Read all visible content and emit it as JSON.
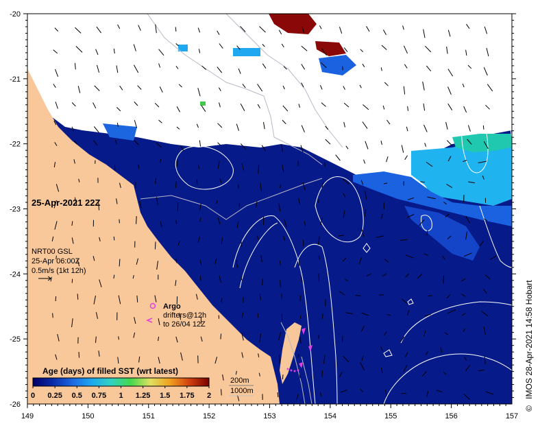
{
  "map": {
    "date_label": "25-Apr-2021 22Z",
    "current_info": {
      "line1": "NRT00 GSL",
      "line2": "25-Apr 06:00Z",
      "line3": "0.5m/s (1kt 12h)"
    },
    "argo": {
      "title": "Argo",
      "line1": "drifters@12h",
      "line2": "to 26/04 12Z"
    },
    "bathymetry": {
      "line1": "200m",
      "line2": "1000m"
    },
    "credit": "IMOS 28-Apr-2021 14:58 Hobart",
    "credit_symbol": "©",
    "lon_ticks": [
      "149",
      "150",
      "151",
      "152",
      "153",
      "154",
      "155",
      "156",
      "157"
    ],
    "lat_ticks": [
      "-20",
      "-21",
      "-22",
      "-23",
      "-24",
      "-25",
      "-26"
    ],
    "colorbar": {
      "title": "Age (days) of filled SST (wrt latest)",
      "labels": [
        "0",
        "0.25",
        "0.5",
        "0.75",
        "1",
        "1.25",
        "1.5",
        "1.75",
        "2"
      ],
      "colors": [
        "#000066",
        "#0a2aa8",
        "#1c66e0",
        "#1ea8f0",
        "#30d2c0",
        "#44d84c",
        "#e0e060",
        "#f0a020",
        "#d04010",
        "#7a0000"
      ]
    },
    "colors": {
      "ocean": "#071a8a",
      "land": "#f9c89a",
      "cloud": "#ffffff",
      "argo": "#e040e0"
    }
  }
}
